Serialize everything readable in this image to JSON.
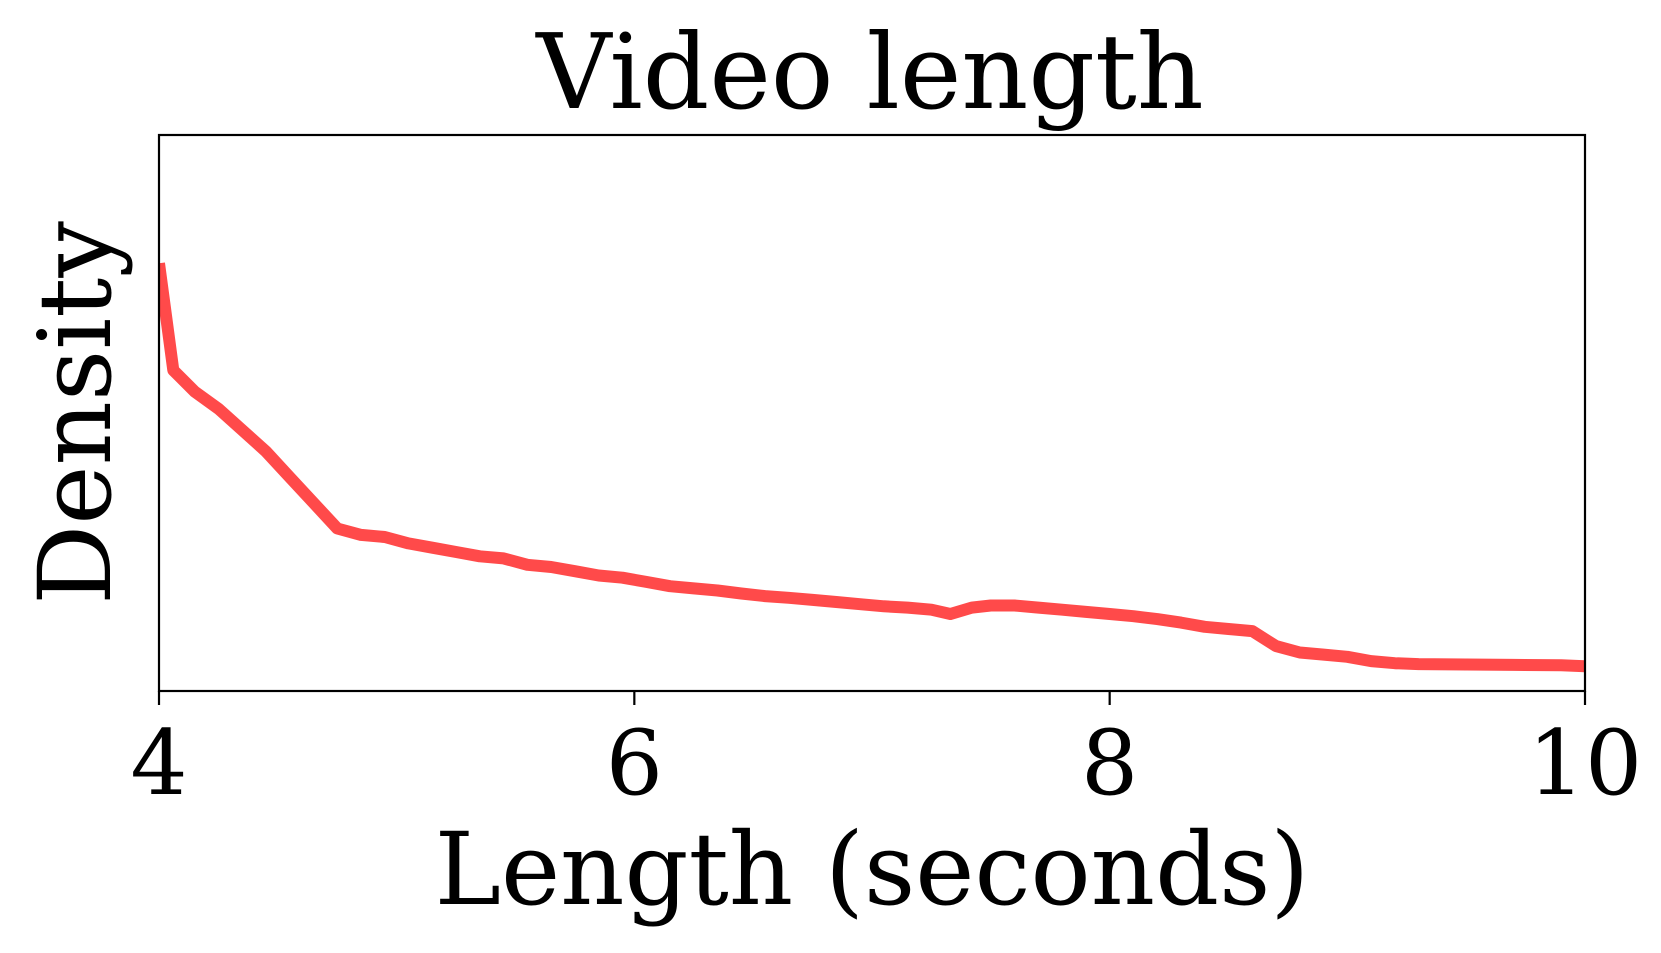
{
  "chart_data": {
    "type": "line",
    "title": "Video length",
    "xlabel": "Length (seconds)",
    "ylabel": "Density",
    "xlim": [
      4,
      10
    ],
    "ylim": [
      0,
      1.3
    ],
    "xticks": [
      4,
      6,
      8,
      10
    ],
    "yticks_visible": false,
    "grid": false,
    "legend": "none",
    "series": [
      {
        "color": "#ff4a4a",
        "x": [
          4.0,
          4.06,
          4.15,
          4.25,
          4.35,
          4.45,
          4.55,
          4.65,
          4.75,
          4.85,
          4.95,
          5.05,
          5.15,
          5.25,
          5.35,
          5.45,
          5.55,
          5.65,
          5.75,
          5.85,
          5.95,
          6.05,
          6.15,
          6.25,
          6.35,
          6.45,
          6.55,
          6.65,
          6.75,
          6.85,
          6.95,
          7.05,
          7.15,
          7.25,
          7.33,
          7.42,
          7.5,
          7.6,
          7.7,
          7.8,
          7.9,
          8.0,
          8.1,
          8.2,
          8.3,
          8.4,
          8.5,
          8.6,
          8.7,
          8.8,
          8.9,
          9.0,
          9.1,
          9.2,
          9.3,
          9.5,
          9.7,
          9.9,
          10.0
        ],
        "y": [
          1.0,
          0.75,
          0.7,
          0.66,
          0.61,
          0.56,
          0.5,
          0.44,
          0.38,
          0.365,
          0.36,
          0.345,
          0.335,
          0.325,
          0.315,
          0.31,
          0.295,
          0.29,
          0.28,
          0.27,
          0.265,
          0.255,
          0.245,
          0.24,
          0.235,
          0.228,
          0.222,
          0.218,
          0.213,
          0.208,
          0.203,
          0.198,
          0.195,
          0.19,
          0.18,
          0.195,
          0.2,
          0.2,
          0.195,
          0.19,
          0.185,
          0.18,
          0.175,
          0.168,
          0.16,
          0.15,
          0.145,
          0.14,
          0.105,
          0.09,
          0.085,
          0.08,
          0.07,
          0.065,
          0.063,
          0.062,
          0.061,
          0.06,
          0.058
        ]
      }
    ]
  }
}
